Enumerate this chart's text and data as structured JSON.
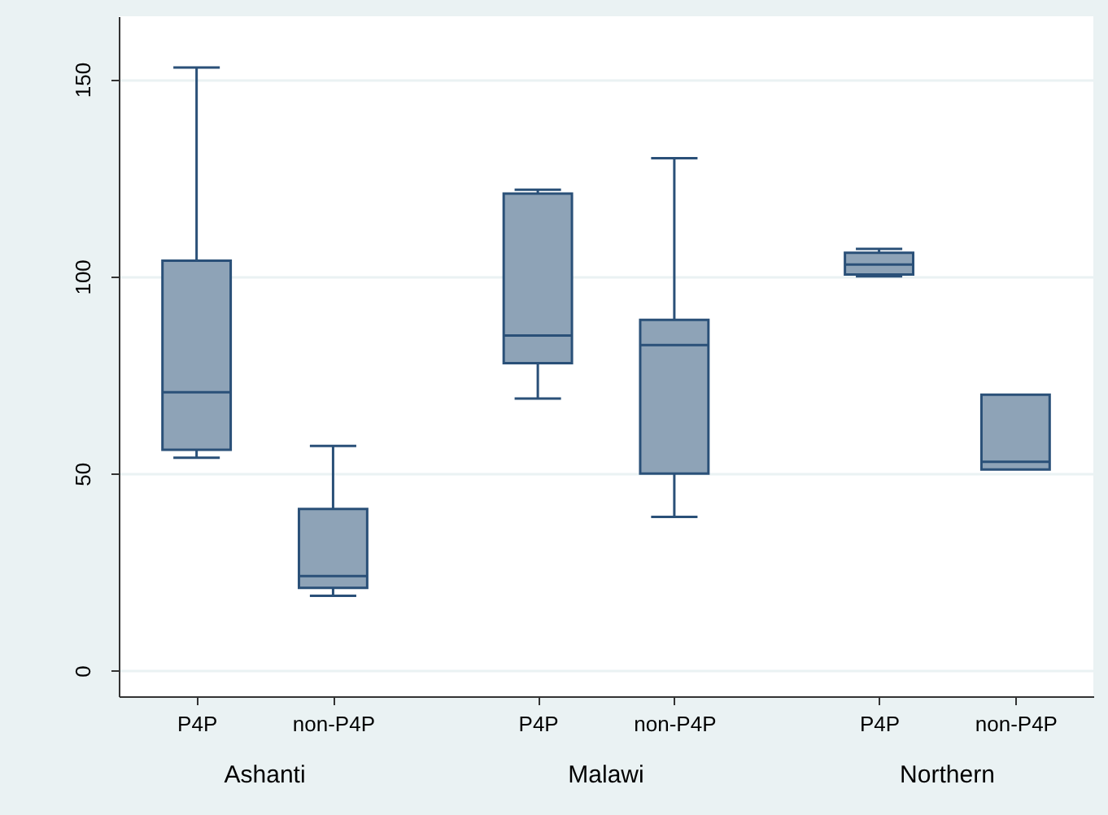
{
  "chart_data": {
    "type": "box",
    "categories": [
      "P4P",
      "non-P4P",
      "P4P",
      "non-P4P",
      "P4P",
      "non-P4P"
    ],
    "annotations": [
      "Ashanti",
      "Malawi",
      "Northern"
    ],
    "color": "#8ea3b7",
    "boxes": [
      {
        "low": 54,
        "q1": 56,
        "median": 70.6,
        "q3": 104,
        "high": 153
      },
      {
        "low": 19,
        "q1": 21,
        "median": 24,
        "q3": 41,
        "high": 57
      },
      {
        "low": 69,
        "q1": 78,
        "median": 85,
        "q3": 121,
        "high": 122
      },
      {
        "low": 39,
        "q1": 50,
        "median": 82.6,
        "q3": 89,
        "high": 130
      },
      {
        "low": 100,
        "q1": 100.5,
        "median": 103,
        "q3": 106,
        "high": 107
      },
      {
        "low": 51,
        "q1": 51,
        "median": 53,
        "q3": 70,
        "high": 70
      }
    ],
    "ylim": [
      -6.5,
      166
    ],
    "yticks": [
      0,
      50,
      100,
      150
    ],
    "grid": "y"
  }
}
